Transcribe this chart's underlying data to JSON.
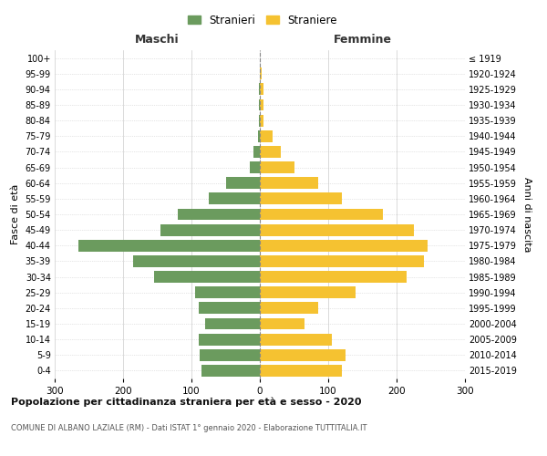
{
  "age_groups": [
    "0-4",
    "5-9",
    "10-14",
    "15-19",
    "20-24",
    "25-29",
    "30-34",
    "35-39",
    "40-44",
    "45-49",
    "50-54",
    "55-59",
    "60-64",
    "65-69",
    "70-74",
    "75-79",
    "80-84",
    "85-89",
    "90-94",
    "95-99",
    "100+"
  ],
  "birth_years": [
    "2015-2019",
    "2010-2014",
    "2005-2009",
    "2000-2004",
    "1995-1999",
    "1990-1994",
    "1985-1989",
    "1980-1984",
    "1975-1979",
    "1970-1974",
    "1965-1969",
    "1960-1964",
    "1955-1959",
    "1950-1954",
    "1945-1949",
    "1940-1944",
    "1935-1939",
    "1930-1934",
    "1925-1929",
    "1920-1924",
    "≤ 1919"
  ],
  "males": [
    85,
    88,
    90,
    80,
    90,
    95,
    155,
    185,
    265,
    145,
    120,
    75,
    50,
    15,
    10,
    3,
    2,
    1,
    1,
    0,
    0
  ],
  "females": [
    120,
    125,
    105,
    65,
    85,
    140,
    215,
    240,
    245,
    225,
    180,
    120,
    85,
    50,
    30,
    18,
    5,
    5,
    5,
    2,
    0
  ],
  "male_color": "#6b9b5e",
  "female_color": "#f5c231",
  "background_color": "#ffffff",
  "grid_color": "#cccccc",
  "center_line_color": "#888888",
  "title": "Popolazione per cittadinanza straniera per età e sesso - 2020",
  "subtitle": "COMUNE DI ALBANO LAZIALE (RM) - Dati ISTAT 1° gennaio 2020 - Elaborazione TUTTITALIA.IT",
  "xlabel_left": "Maschi",
  "xlabel_right": "Femmine",
  "ylabel_left": "Fasce di età",
  "ylabel_right": "Anni di nascita",
  "legend_male": "Stranieri",
  "legend_female": "Straniere",
  "xlim": 300,
  "bar_height": 0.75
}
